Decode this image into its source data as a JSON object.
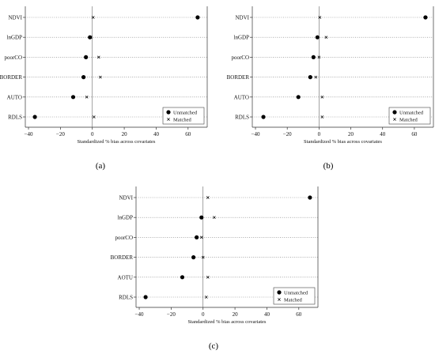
{
  "chart_data": [
    {
      "type": "scatter",
      "panel_label": "(a)",
      "categories": [
        "NDVI",
        "lnGDP",
        "poorCO",
        "BORDER",
        "AUTO",
        "RDLS"
      ],
      "series": [
        {
          "name": "Unmatched",
          "values": [
            66,
            -1.5,
            -4,
            -5.5,
            -12,
            -36
          ]
        },
        {
          "name": "Matched",
          "values": [
            0.5,
            -1,
            4,
            5,
            -3.5,
            1
          ]
        }
      ],
      "xlabel": "Standardized % bias across covariates",
      "xticks": [
        -40,
        -20,
        0,
        20,
        40,
        60
      ],
      "xtick_labels": [
        "−40",
        "−20",
        "0",
        "20",
        "40",
        "60"
      ],
      "xlim": [
        -42,
        72
      ],
      "legend": "bottom-right"
    },
    {
      "type": "scatter",
      "panel_label": "(b)",
      "categories": [
        "NDVI",
        "lnGDP",
        "poorCO",
        "BORDER",
        "AUTO",
        "RDLS"
      ],
      "series": [
        {
          "name": "Unmatched",
          "values": [
            67,
            -1,
            -3.5,
            -5.5,
            -13,
            -35
          ]
        },
        {
          "name": "Matched",
          "values": [
            0.5,
            4.5,
            0,
            -2,
            2,
            2
          ]
        }
      ],
      "xlabel": "Standardized % bias across covariates",
      "xticks": [
        -40,
        -20,
        0,
        20,
        40,
        60
      ],
      "xtick_labels": [
        "−40",
        "−20",
        "0",
        "20",
        "40",
        "60"
      ],
      "xlim": [
        -42,
        72
      ],
      "legend": "bottom-right"
    },
    {
      "type": "scatter",
      "panel_label": "(c)",
      "categories": [
        "NDVI",
        "lnGDP",
        "poorCO",
        "BORDER",
        "AOTU",
        "RDLS"
      ],
      "series": [
        {
          "name": "Unmatched",
          "values": [
            67,
            -1,
            -4,
            -6,
            -13,
            -36
          ]
        },
        {
          "name": "Matched",
          "values": [
            3,
            7,
            -1,
            0,
            3,
            2
          ]
        }
      ],
      "xlabel": "Standardized % bias across covariates",
      "xticks": [
        -40,
        -20,
        0,
        20,
        40,
        60
      ],
      "xtick_labels": [
        "−40",
        "−20",
        "0",
        "20",
        "40",
        "60"
      ],
      "xlim": [
        -42,
        72
      ],
      "legend": "bottom-right"
    }
  ]
}
